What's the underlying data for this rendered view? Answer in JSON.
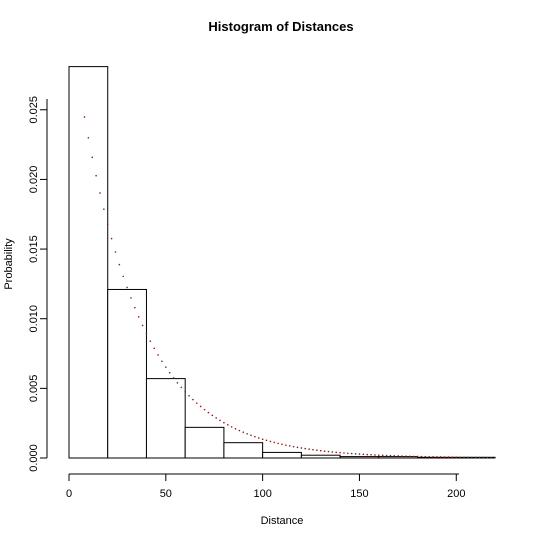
{
  "chart_data": {
    "type": "bar",
    "title": "Histogram of Distances",
    "xlabel": "Distance",
    "ylabel": "Probability",
    "bins": [
      {
        "start": 0,
        "end": 20,
        "value": 0.0281
      },
      {
        "start": 20,
        "end": 40,
        "value": 0.0121
      },
      {
        "start": 40,
        "end": 60,
        "value": 0.0057
      },
      {
        "start": 60,
        "end": 80,
        "value": 0.0022
      },
      {
        "start": 80,
        "end": 100,
        "value": 0.0011
      },
      {
        "start": 100,
        "end": 120,
        "value": 0.0004
      },
      {
        "start": 120,
        "end": 140,
        "value": 0.0002
      },
      {
        "start": 140,
        "end": 160,
        "value": 0.0001
      },
      {
        "start": 160,
        "end": 180,
        "value": 0.0001
      },
      {
        "start": 180,
        "end": 200,
        "value": 5e-05
      },
      {
        "start": 200,
        "end": 220,
        "value": 5e-05
      }
    ],
    "x_ticks": [
      "0",
      "50",
      "100",
      "150",
      "200"
    ],
    "y_ticks": [
      "0.000",
      "0.005",
      "0.010",
      "0.015",
      "0.020",
      "0.025"
    ],
    "xlim": [
      0,
      220
    ],
    "ylim": [
      0,
      0.028
    ],
    "grid": false,
    "series": [
      {
        "type": "curve",
        "color": "#8b1a1a",
        "model": "exponential",
        "rate": 0.0315,
        "x_start": 8,
        "x_end": 220
      }
    ]
  }
}
